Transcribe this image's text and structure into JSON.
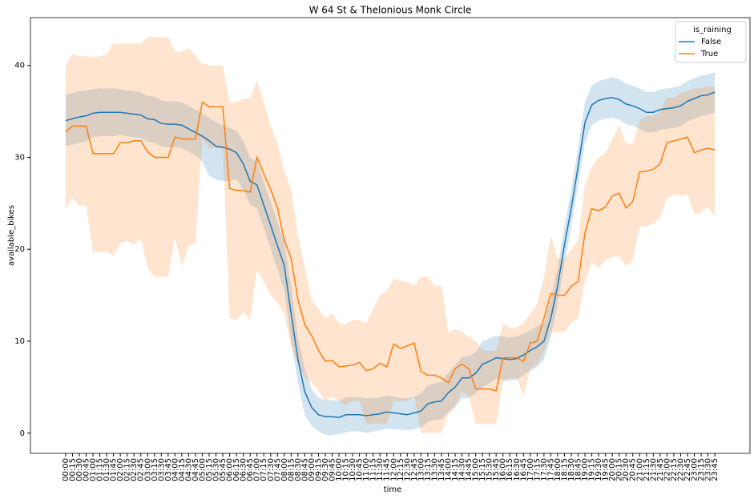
{
  "chart_data": {
    "type": "line",
    "title": "W 64 St & Thelonious Monk Circle",
    "x_label": "time",
    "y_label": "available_bikes",
    "legend_title": "is_raining",
    "legend_position": "upper right",
    "categories": [
      "00:00",
      "00:15",
      "00:30",
      "00:45",
      "01:00",
      "01:15",
      "01:30",
      "01:45",
      "02:00",
      "02:15",
      "02:30",
      "02:45",
      "03:00",
      "03:15",
      "03:30",
      "03:45",
      "04:00",
      "04:15",
      "04:30",
      "04:45",
      "05:00",
      "05:15",
      "05:30",
      "05:45",
      "06:00",
      "06:15",
      "06:30",
      "06:45",
      "07:00",
      "07:15",
      "07:30",
      "07:45",
      "08:00",
      "08:15",
      "08:30",
      "08:45",
      "09:00",
      "09:15",
      "09:30",
      "09:45",
      "10:00",
      "10:15",
      "10:30",
      "10:45",
      "11:00",
      "11:15",
      "11:30",
      "11:45",
      "12:00",
      "12:15",
      "12:30",
      "12:45",
      "13:00",
      "13:15",
      "13:30",
      "13:45",
      "14:00",
      "14:15",
      "14:30",
      "14:45",
      "15:00",
      "15:15",
      "15:30",
      "15:45",
      "16:00",
      "16:15",
      "16:30",
      "16:45",
      "17:00",
      "17:15",
      "17:30",
      "17:45",
      "18:00",
      "18:15",
      "18:30",
      "18:45",
      "19:00",
      "19:15",
      "19:30",
      "19:45",
      "20:00",
      "20:15",
      "20:30",
      "20:45",
      "21:00",
      "21:15",
      "21:30",
      "21:45",
      "22:00",
      "22:15",
      "22:30",
      "22:45",
      "23:00",
      "23:15",
      "23:30",
      "23:45"
    ],
    "ylim": [
      -2.2,
      45.2
    ],
    "yticks": [
      0,
      10,
      20,
      30,
      40
    ],
    "series": [
      {
        "name": "False",
        "color": "#1f77b4",
        "values": [
          34.0,
          34.2,
          34.4,
          34.5,
          34.8,
          34.9,
          34.9,
          34.9,
          34.9,
          34.8,
          34.7,
          34.6,
          34.2,
          34.1,
          33.7,
          33.6,
          33.6,
          33.5,
          33.1,
          32.7,
          32.3,
          31.8,
          31.2,
          31.1,
          30.9,
          30.5,
          29.3,
          27.4,
          27.0,
          24.8,
          22.6,
          20.4,
          18.2,
          13.0,
          8.0,
          4.5,
          2.8,
          2.0,
          1.8,
          1.8,
          1.7,
          2.0,
          2.0,
          2.0,
          1.9,
          2.0,
          2.1,
          2.3,
          2.2,
          2.1,
          2.0,
          2.2,
          2.4,
          3.2,
          3.4,
          3.5,
          4.4,
          5.0,
          6.0,
          6.0,
          6.5,
          7.5,
          7.8,
          8.2,
          8.1,
          8.0,
          8.1,
          8.5,
          9.0,
          9.4,
          10.0,
          12.5,
          16.0,
          20.5,
          24.5,
          29.0,
          33.8,
          35.7,
          36.2,
          36.4,
          36.5,
          36.3,
          35.8,
          35.6,
          35.3,
          34.9,
          34.9,
          35.2,
          35.3,
          35.4,
          35.6,
          36.1,
          36.4,
          36.7,
          36.8,
          37.1
        ],
        "lower": [
          31.2,
          31.4,
          31.6,
          31.7,
          32.2,
          32.3,
          32.3,
          32.3,
          32.4,
          32.3,
          32.2,
          32.1,
          31.7,
          31.6,
          31.2,
          31.1,
          31.1,
          31.0,
          30.6,
          30.2,
          29.5,
          28.0,
          27.6,
          27.4,
          27.4,
          27.6,
          26.5,
          24.8,
          24.5,
          22.3,
          20.0,
          17.8,
          15.5,
          10.0,
          5.5,
          2.0,
          0.8,
          0.2,
          -0.2,
          -0.2,
          -0.1,
          0.1,
          0.2,
          0.2,
          0.0,
          0.2,
          0.3,
          0.5,
          0.4,
          0.4,
          0.3,
          0.4,
          0.6,
          1.2,
          1.4,
          1.5,
          2.3,
          2.8,
          3.8,
          3.8,
          4.3,
          5.0,
          5.4,
          5.9,
          5.8,
          5.7,
          5.8,
          6.3,
          6.8,
          7.2,
          8.0,
          10.5,
          14.0,
          18.5,
          22.5,
          27.0,
          31.6,
          33.5,
          34.0,
          34.2,
          34.3,
          34.1,
          33.6,
          33.4,
          33.1,
          32.7,
          32.7,
          33.0,
          33.1,
          33.2,
          33.4,
          33.9,
          34.2,
          34.5,
          34.6,
          34.9
        ],
        "upper": [
          36.8,
          37.0,
          37.2,
          37.3,
          37.4,
          37.5,
          37.5,
          37.5,
          37.4,
          37.3,
          37.2,
          37.1,
          36.7,
          36.6,
          36.2,
          36.1,
          36.1,
          36.0,
          35.6,
          35.2,
          34.8,
          34.3,
          33.8,
          33.5,
          33.2,
          32.9,
          31.8,
          30.0,
          29.5,
          27.3,
          25.2,
          23.0,
          20.8,
          16.0,
          10.5,
          7.0,
          4.8,
          3.8,
          3.6,
          3.6,
          3.5,
          3.9,
          3.9,
          3.9,
          3.8,
          3.8,
          3.9,
          4.1,
          4.0,
          3.8,
          3.8,
          4.0,
          4.3,
          5.2,
          5.4,
          5.6,
          6.6,
          7.4,
          8.3,
          8.4,
          8.8,
          10.0,
          10.3,
          10.6,
          10.5,
          10.4,
          10.5,
          10.8,
          11.2,
          11.6,
          12.0,
          14.5,
          18.0,
          22.5,
          26.5,
          31.0,
          36.0,
          37.8,
          38.3,
          38.5,
          38.7,
          38.5,
          38.0,
          37.8,
          37.5,
          37.1,
          37.1,
          37.4,
          37.5,
          37.6,
          37.8,
          38.3,
          38.6,
          38.9,
          39.0,
          39.3
        ]
      },
      {
        "name": "True",
        "color": "#ff7f0e",
        "values": [
          32.8,
          33.4,
          33.4,
          33.4,
          30.4,
          30.4,
          30.4,
          30.4,
          31.6,
          31.6,
          31.8,
          31.8,
          30.6,
          30.0,
          30.0,
          30.0,
          32.2,
          32.0,
          32.0,
          32.0,
          36.0,
          35.5,
          35.5,
          35.5,
          26.6,
          26.4,
          26.4,
          26.2,
          30.0,
          28.2,
          26.5,
          24.5,
          21.0,
          19.0,
          14.5,
          11.8,
          10.6,
          9.0,
          7.8,
          7.9,
          7.2,
          7.3,
          7.4,
          7.7,
          6.8,
          7.0,
          7.6,
          7.2,
          9.7,
          9.2,
          9.5,
          9.8,
          6.7,
          6.3,
          6.3,
          6.0,
          5.5,
          7.0,
          7.5,
          7.0,
          4.8,
          4.8,
          4.8,
          4.6,
          8.2,
          8.2,
          8.2,
          7.8,
          9.8,
          10.0,
          12.5,
          15.2,
          15.0,
          15.0,
          16.0,
          16.5,
          21.8,
          24.4,
          24.2,
          24.6,
          25.8,
          26.1,
          24.5,
          25.2,
          28.4,
          28.5,
          28.7,
          29.3,
          31.6,
          31.8,
          32.0,
          32.2,
          30.5,
          30.8,
          31.0,
          30.8
        ],
        "lower": [
          24.4,
          25.6,
          24.7,
          24.7,
          19.7,
          19.7,
          19.7,
          19.3,
          20.6,
          20.9,
          20.5,
          21.2,
          18.0,
          17.0,
          17.0,
          17.0,
          21.2,
          18.2,
          20.4,
          20.6,
          32.0,
          31.0,
          31.0,
          31.0,
          12.5,
          12.3,
          13.2,
          12.3,
          17.8,
          16.5,
          15.0,
          14.2,
          13.0,
          9.5,
          7.5,
          6.0,
          5.5,
          4.5,
          3.5,
          4.0,
          3.5,
          3.0,
          3.5,
          3.5,
          1.0,
          1.0,
          1.0,
          1.0,
          3.5,
          3.5,
          3.5,
          4.0,
          0.0,
          0.0,
          0.0,
          0.0,
          2.0,
          3.0,
          4.5,
          4.0,
          1.0,
          1.0,
          1.0,
          1.0,
          5.5,
          6.0,
          6.0,
          4.0,
          7.0,
          7.5,
          9.0,
          11.0,
          11.0,
          11.0,
          12.0,
          12.5,
          16.5,
          18.5,
          18.0,
          18.8,
          19.2,
          19.2,
          18.2,
          18.8,
          22.5,
          22.5,
          22.8,
          23.5,
          25.5,
          26.0,
          25.8,
          26.0,
          23.8,
          24.0,
          24.6,
          23.6
        ],
        "upper": [
          40.0,
          41.2,
          41.0,
          41.0,
          40.9,
          41.0,
          41.2,
          42.4,
          42.4,
          42.4,
          42.4,
          42.4,
          43.1,
          43.1,
          43.1,
          43.1,
          41.5,
          41.5,
          41.9,
          41.0,
          40.2,
          40.0,
          40.0,
          40.0,
          36.0,
          36.0,
          36.4,
          36.4,
          38.4,
          36.0,
          33.5,
          31.5,
          28.5,
          26.5,
          21.5,
          18.0,
          14.5,
          13.5,
          12.5,
          13.0,
          12.0,
          11.8,
          12.3,
          12.3,
          12.0,
          13.5,
          15.0,
          15.5,
          16.8,
          16.6,
          16.5,
          16.0,
          17.0,
          17.0,
          16.0,
          16.0,
          11.0,
          11.3,
          11.0,
          10.5,
          10.0,
          9.0,
          9.0,
          9.0,
          12.0,
          11.5,
          11.5,
          12.0,
          13.0,
          14.0,
          17.0,
          21.5,
          19.0,
          19.0,
          20.0,
          21.0,
          27.0,
          29.0,
          30.0,
          30.5,
          32.0,
          33.5,
          31.5,
          31.5,
          34.0,
          34.5,
          34.5,
          35.0,
          36.5,
          36.5,
          37.0,
          37.2,
          37.5,
          37.5,
          37.8,
          37.6
        ]
      }
    ]
  }
}
